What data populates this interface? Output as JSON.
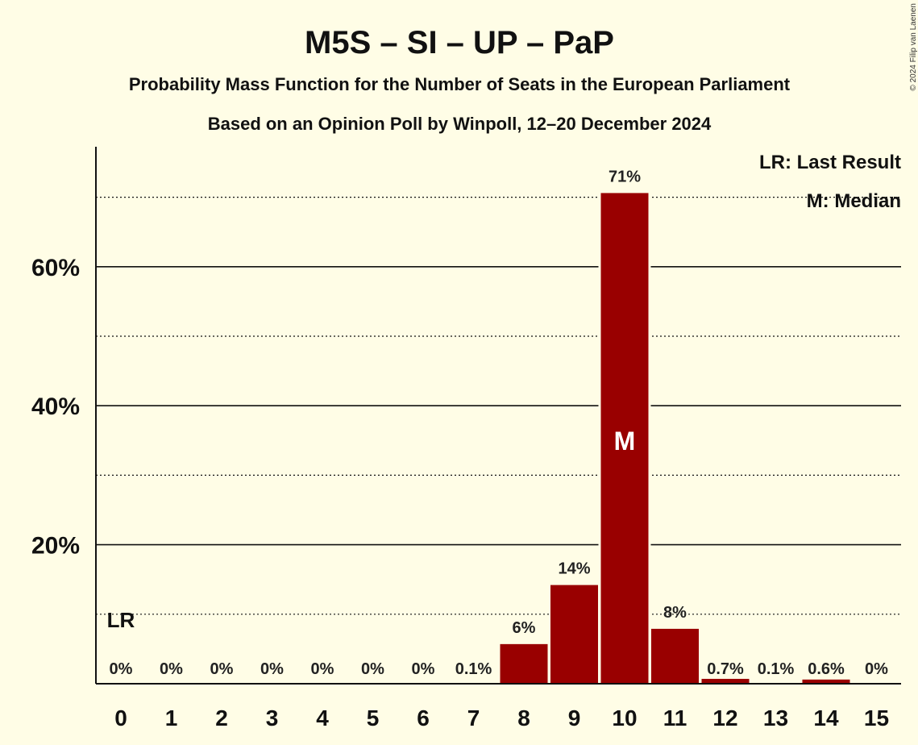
{
  "chart_data": {
    "type": "bar",
    "title": "M5S – SI – UP – PaP",
    "subtitle": "Probability Mass Function for the Number of Seats in the European Parliament",
    "subtitle2": "Based on an Opinion Poll by Winpoll, 12–20 December 2024",
    "copyright": "© 2024 Filip van Laenen",
    "categories": [
      "0",
      "1",
      "2",
      "3",
      "4",
      "5",
      "6",
      "7",
      "8",
      "9",
      "10",
      "11",
      "12",
      "13",
      "14",
      "15"
    ],
    "values": [
      0,
      0,
      0,
      0,
      0,
      0,
      0,
      0.1,
      5.7,
      14.2,
      70.6,
      7.9,
      0.7,
      0.1,
      0.6,
      0
    ],
    "labels": [
      "0%",
      "0%",
      "0%",
      "0%",
      "0%",
      "0%",
      "0%",
      "0.1%",
      "6%",
      "14%",
      "71%",
      "8%",
      "0.7%",
      "0.1%",
      "0.6%",
      "0%"
    ],
    "ylim": [
      0,
      77
    ],
    "y_major_ticks": [
      20,
      40,
      60
    ],
    "y_major_tick_labels": [
      "20%",
      "40%",
      "60%"
    ],
    "y_minor_ticks": [
      10,
      30,
      50,
      70
    ],
    "last_result_seat": 0,
    "last_result_marker": "LR",
    "median_seat": 10,
    "median_marker": "M",
    "legend": {
      "last_result": "LR: Last Result",
      "median": "M: Median",
      "position": "top-right"
    },
    "bar_color": "#990000",
    "background_color": "#fffde6"
  }
}
